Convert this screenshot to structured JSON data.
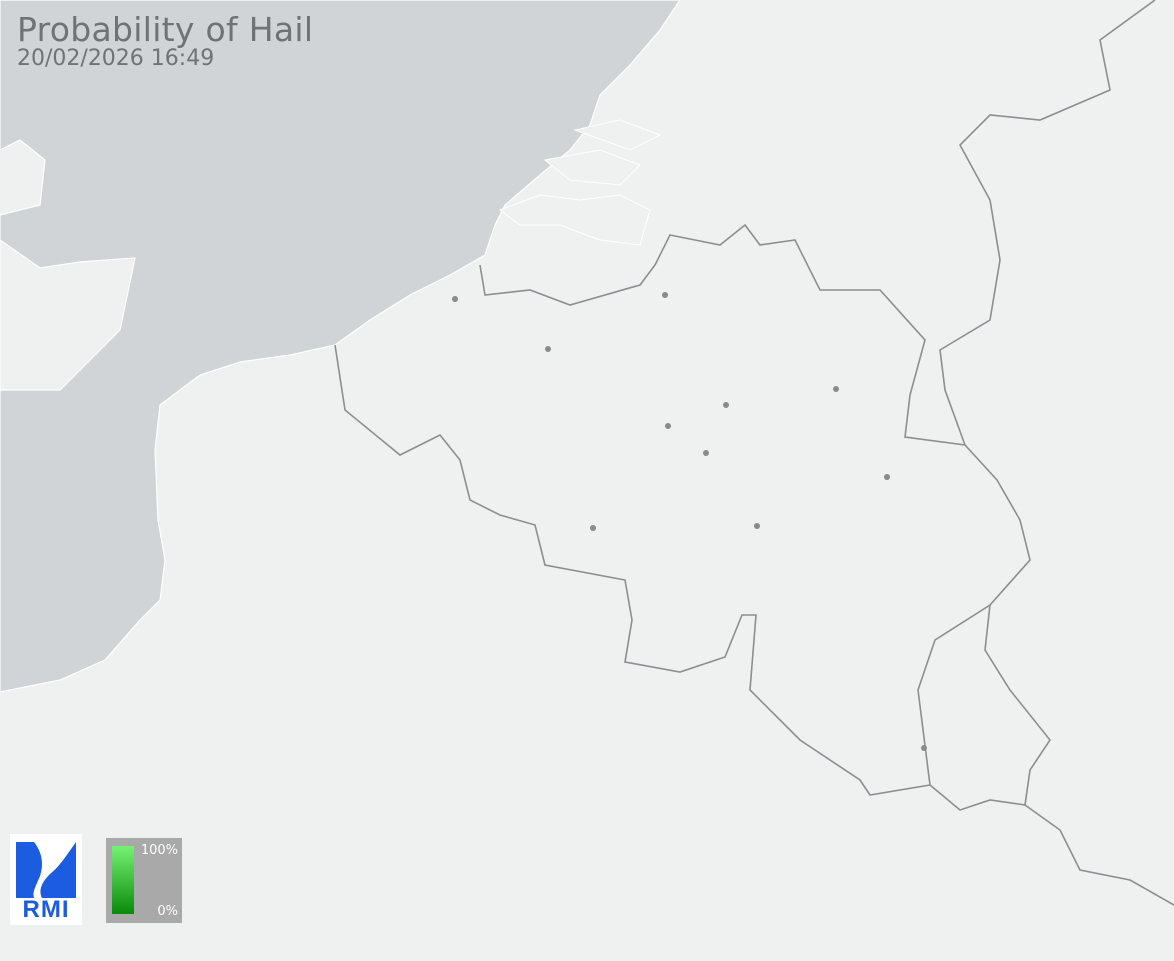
{
  "header": {
    "title": "Probability of Hail",
    "timestamp": "20/02/2026 16:49"
  },
  "logo": {
    "text": "RMI",
    "color": "#1b5ce0"
  },
  "legend": {
    "max_label": "100%",
    "min_label": "0%",
    "gradient_top": "#74f274",
    "gradient_bottom": "#0a8a0a"
  },
  "map": {
    "sea_color": "#d1d4d6",
    "land_color": "#eff0f0",
    "border_color": "#8c8e90",
    "city_marker_color": "#8a8a8a"
  }
}
